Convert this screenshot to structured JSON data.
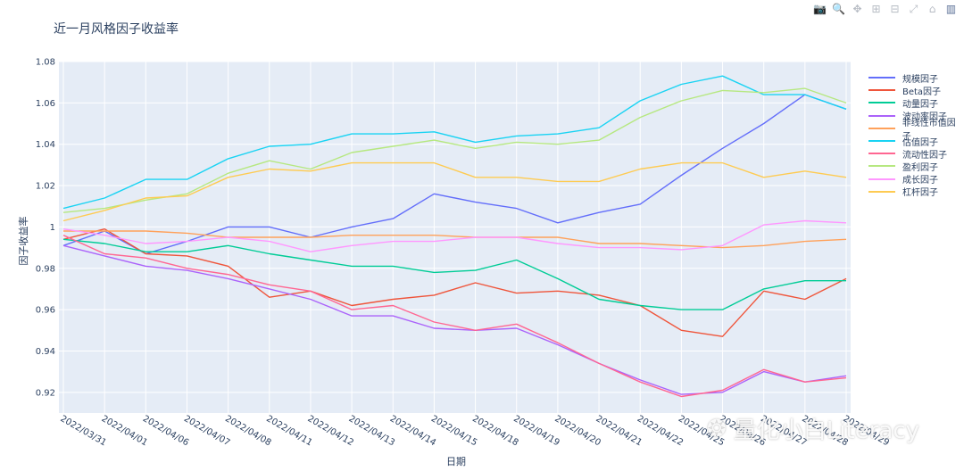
{
  "modebar": {
    "icons": [
      "camera-icon",
      "zoom-icon",
      "pan-icon",
      "zoom-in-icon",
      "zoom-out-icon",
      "autoscale-icon",
      "home-icon",
      "plotly-logo-icon"
    ],
    "glyphs": [
      "📷",
      "🔍",
      "✥",
      "⊞",
      "⊟",
      "⤢",
      "⌂",
      "▥"
    ]
  },
  "watermark": {
    "text": "量化小白Literacy",
    "icon": "wechat-icon"
  },
  "colors": {
    "plot_bg": "#E5ECF6",
    "grid": "#ffffff",
    "series": [
      "#636efa",
      "#EF553B",
      "#00cc96",
      "#ab63fa",
      "#FFA15A",
      "#19d3f3",
      "#FF6692",
      "#B6E880",
      "#FF97FF",
      "#FECB52"
    ]
  },
  "chart_data": {
    "type": "line",
    "title": "近一月风格因子收益率",
    "xlabel": "日期",
    "ylabel": "因子收益率",
    "ylim": [
      0.91,
      1.08
    ],
    "yticks": [
      0.92,
      0.94,
      0.96,
      0.98,
      1,
      1.02,
      1.04,
      1.06,
      1.08
    ],
    "ytick_labels": [
      "0.92",
      "0.94",
      "0.96",
      "0.98",
      "1",
      "1.02",
      "1.04",
      "1.06",
      "1.08"
    ],
    "x": [
      "2022/03/31",
      "2022/04/01",
      "2022/04/06",
      "2022/04/07",
      "2022/04/08",
      "2022/04/11",
      "2022/04/12",
      "2022/04/13",
      "2022/04/14",
      "2022/04/15",
      "2022/04/18",
      "2022/04/19",
      "2022/04/20",
      "2022/04/21",
      "2022/04/22",
      "2022/04/25",
      "2022/04/26",
      "2022/04/27",
      "2022/04/28",
      "2022/04/29"
    ],
    "grid": true,
    "legend_position": "right",
    "series": [
      {
        "name": "规模因子",
        "values": [
          0.991,
          0.998,
          0.987,
          0.993,
          1.0,
          1.0,
          0.995,
          1.0,
          1.004,
          1.016,
          1.012,
          1.009,
          1.002,
          1.007,
          1.011,
          1.025,
          1.038,
          1.05,
          1.064,
          1.057
        ]
      },
      {
        "name": "Beta因子",
        "values": [
          0.994,
          0.999,
          0.987,
          0.986,
          0.981,
          0.966,
          0.969,
          0.962,
          0.965,
          0.967,
          0.973,
          0.968,
          0.969,
          0.967,
          0.962,
          0.95,
          0.947,
          0.969,
          0.965,
          0.975
        ]
      },
      {
        "name": "动量因子",
        "values": [
          0.994,
          0.992,
          0.988,
          0.988,
          0.991,
          0.987,
          0.984,
          0.981,
          0.981,
          0.978,
          0.979,
          0.984,
          0.975,
          0.965,
          0.962,
          0.96,
          0.96,
          0.97,
          0.974,
          0.974
        ]
      },
      {
        "name": "波动率因子",
        "values": [
          0.991,
          0.986,
          0.981,
          0.979,
          0.975,
          0.97,
          0.965,
          0.957,
          0.957,
          0.951,
          0.95,
          0.951,
          0.943,
          0.934,
          0.926,
          0.919,
          0.92,
          0.93,
          0.925,
          0.928
        ]
      },
      {
        "name": "非线性市值因子",
        "values": [
          0.998,
          0.998,
          0.998,
          0.997,
          0.995,
          0.995,
          0.995,
          0.996,
          0.996,
          0.996,
          0.995,
          0.995,
          0.995,
          0.992,
          0.992,
          0.991,
          0.99,
          0.991,
          0.993,
          0.994
        ]
      },
      {
        "name": "估值因子",
        "values": [
          1.009,
          1.014,
          1.023,
          1.023,
          1.033,
          1.039,
          1.04,
          1.045,
          1.045,
          1.046,
          1.041,
          1.044,
          1.045,
          1.048,
          1.061,
          1.069,
          1.073,
          1.064,
          1.064,
          1.057
        ]
      },
      {
        "name": "流动性因子",
        "values": [
          0.996,
          0.987,
          0.985,
          0.98,
          0.977,
          0.972,
          0.969,
          0.96,
          0.962,
          0.954,
          0.95,
          0.953,
          0.944,
          0.934,
          0.925,
          0.918,
          0.921,
          0.931,
          0.925,
          0.927
        ]
      },
      {
        "name": "盈利因子",
        "values": [
          1.007,
          1.009,
          1.013,
          1.016,
          1.026,
          1.032,
          1.028,
          1.036,
          1.039,
          1.042,
          1.038,
          1.041,
          1.04,
          1.042,
          1.053,
          1.061,
          1.066,
          1.065,
          1.067,
          1.06
        ]
      },
      {
        "name": "成长因子",
        "values": [
          0.999,
          0.996,
          0.992,
          0.993,
          0.995,
          0.993,
          0.988,
          0.991,
          0.993,
          0.993,
          0.995,
          0.995,
          0.992,
          0.99,
          0.99,
          0.989,
          0.991,
          1.001,
          1.003,
          1.002
        ]
      },
      {
        "name": "杠杆因子",
        "values": [
          1.003,
          1.008,
          1.014,
          1.015,
          1.024,
          1.028,
          1.027,
          1.031,
          1.031,
          1.031,
          1.024,
          1.024,
          1.022,
          1.022,
          1.028,
          1.031,
          1.031,
          1.024,
          1.027,
          1.024
        ]
      }
    ]
  }
}
